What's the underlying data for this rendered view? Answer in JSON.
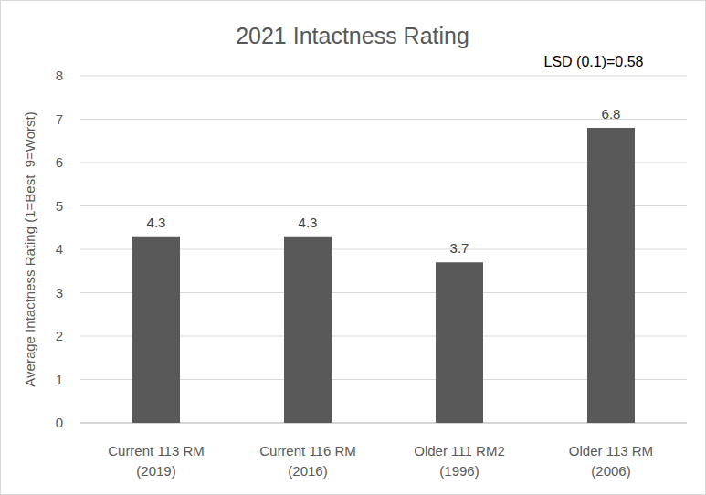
{
  "chart_data": {
    "type": "bar",
    "title": "2021 Intactness Rating",
    "annotation": "LSD (0.1)=0.58",
    "y_label": "Average Intactness Rating (1=Best  9=Worst)",
    "categories": [
      "Current 113 RM\n(2019)",
      "Current 116 RM\n(2016)",
      "Older 111 RM2\n(1996)",
      "Older 113 RM\n(2006)"
    ],
    "values": [
      4.3,
      4.3,
      3.7,
      6.8
    ],
    "color": "#595959",
    "ylim": [
      0,
      8
    ],
    "yticks": [
      0,
      1,
      2,
      3,
      4,
      5,
      6,
      7,
      8
    ],
    "grid": true,
    "data_labels": true
  }
}
